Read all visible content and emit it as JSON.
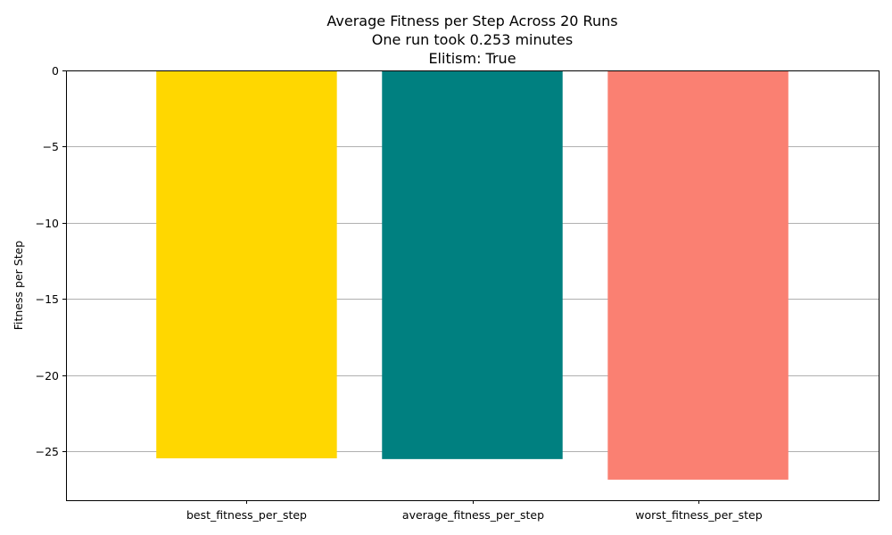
{
  "chart_data": {
    "type": "bar",
    "title_lines": [
      "Average Fitness per Step Across 20 Runs",
      "One run took 0.253 minutes",
      "Elitism: True"
    ],
    "xlabel": "",
    "ylabel": "Fitness per Step",
    "categories": [
      "best_fitness_per_step",
      "average_fitness_per_step",
      "worst_fitness_per_step"
    ],
    "values": [
      -25.45,
      -25.5,
      -26.85
    ],
    "colors": [
      "#FFD700",
      "#008080",
      "#FA8072"
    ],
    "ylim": [
      -28.2,
      0
    ],
    "yticks": [
      0,
      -5,
      -10,
      -15,
      -20,
      -25
    ],
    "ytick_labels": [
      "0",
      "−5",
      "−10",
      "−15",
      "−20",
      "−25"
    ],
    "grid": {
      "axis": "y",
      "color": "#b0b0b0"
    }
  }
}
